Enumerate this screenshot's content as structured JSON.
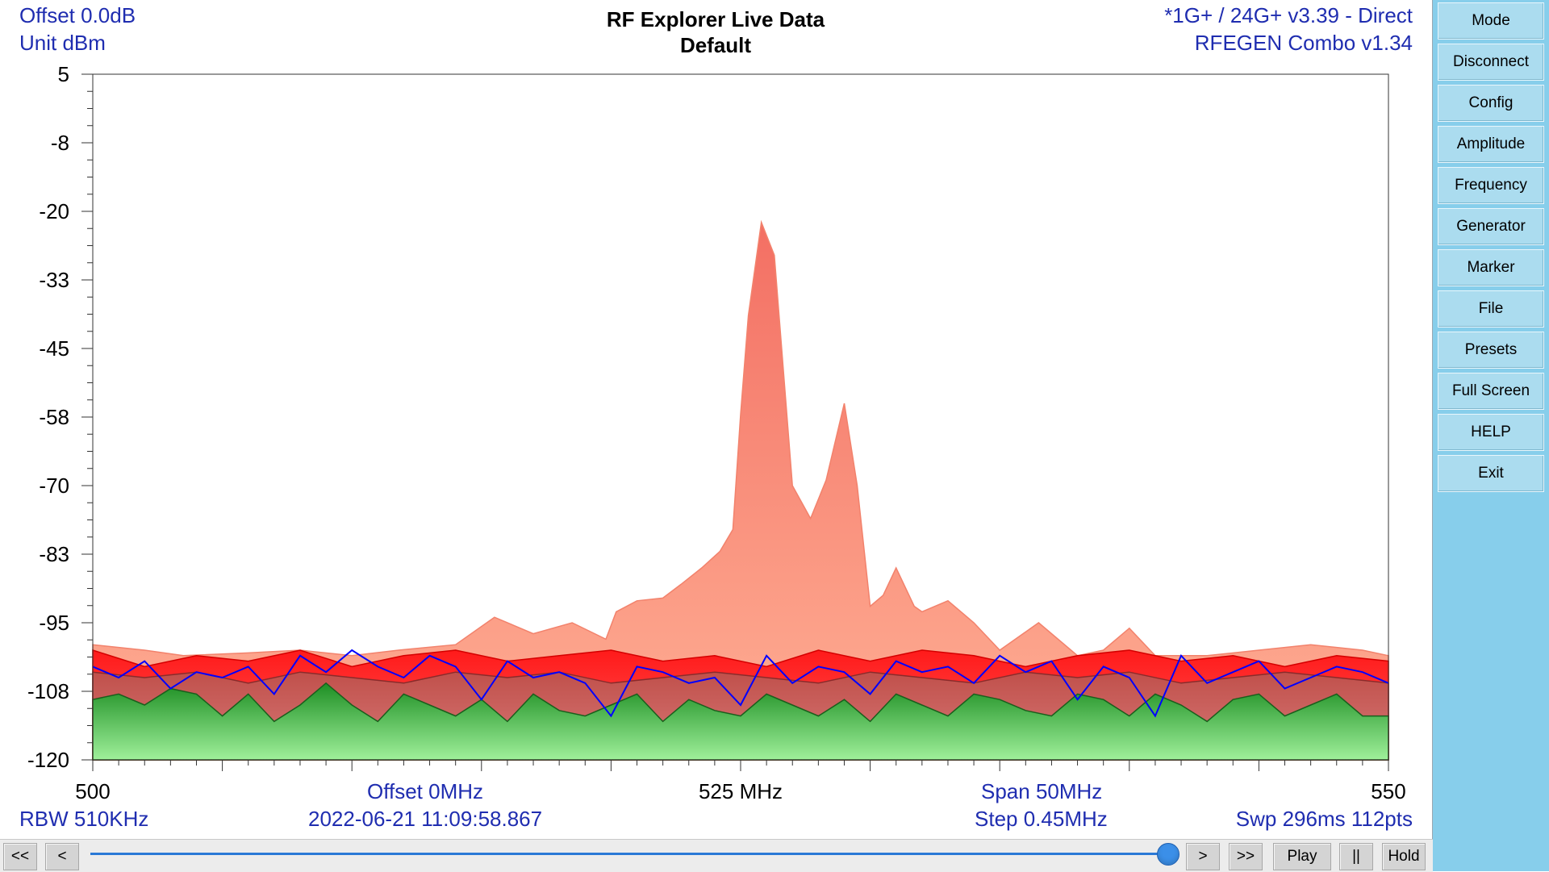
{
  "header": {
    "offset_db": "Offset 0.0dB",
    "unit": "Unit dBm",
    "title": "RF Explorer Live Data",
    "subtitle": "Default",
    "device": "*1G+ / 24G+ v3.39 - Direct",
    "generator": "RFEGEN Combo  v1.34"
  },
  "footer": {
    "rbw": "RBW 510KHz",
    "offset_mhz": "Offset 0MHz",
    "timestamp": "2022-06-21 11:09:58.867",
    "span": "Span 50MHz",
    "step": "Step 0.45MHz",
    "sweep": "Swp 296ms  112pts"
  },
  "sidebar": {
    "buttons": [
      "Mode",
      "Disconnect",
      "Config",
      "Amplitude",
      "Frequency",
      "Generator",
      "Marker",
      "File",
      "Presets",
      "Full Screen",
      "HELP",
      "Exit"
    ]
  },
  "bottombar": {
    "rewind": "<<",
    "back": "<",
    "forward": ">",
    "fast_forward": ">>",
    "play": "Play",
    "pause": "||",
    "hold": "Hold",
    "playback_position": 0.98
  },
  "colors": {
    "label_blue": "#1f2db0",
    "max_hold": "#f2826c",
    "max": "#ff2020",
    "avg": "#c85050",
    "min": "#3fb845",
    "realtime": "#0000ff",
    "sidebar_bg": "#87ceeb"
  },
  "chart_data": {
    "type": "area",
    "xlim": [
      500,
      550
    ],
    "ylim": [
      -120,
      5
    ],
    "y_ticks": [
      "5",
      "-8",
      "-20",
      "-33",
      "-45",
      "-58",
      "-70",
      "-83",
      "-95",
      "-108",
      "-120"
    ],
    "x_tick_labels": [
      "500",
      "525 MHz",
      "550"
    ],
    "series": [
      {
        "name": "max-hold",
        "x": [
          500,
          502,
          503.5,
          506,
          508,
          510,
          511.8,
          514,
          515.5,
          517,
          518.5,
          519.8,
          520.2,
          521,
          522,
          522.7,
          523.5,
          524.2,
          524.7,
          525,
          525.3,
          525.8,
          526.3,
          527,
          527.7,
          528.3,
          529,
          529.5,
          530,
          530.5,
          531,
          531.7,
          532,
          533,
          534,
          535,
          536.5,
          538,
          539,
          540,
          541,
          543,
          545,
          547,
          549,
          550
        ],
        "y": [
          -99,
          -100,
          -101,
          -100.5,
          -100,
          -101,
          -100,
          -99,
          -94,
          -97,
          -95,
          -98,
          -93,
          -91,
          -90.5,
          -88,
          -85,
          -82,
          -78,
          -57,
          -39,
          -22,
          -28,
          -70,
          -76,
          -69,
          -55,
          -70,
          -92,
          -90,
          -85,
          -92,
          -93,
          -91,
          -95,
          -100,
          -95,
          -101,
          -100,
          -96,
          -101,
          -101,
          -100,
          -99,
          -100,
          -101
        ]
      },
      {
        "name": "max",
        "x": [
          500,
          502,
          504,
          506,
          508,
          510,
          512,
          514,
          516,
          518,
          520,
          522,
          524,
          526,
          528,
          530,
          532,
          534,
          536,
          538,
          540,
          542,
          544,
          546,
          548,
          550
        ],
        "y": [
          -100,
          -103,
          -101,
          -102,
          -100,
          -103,
          -101,
          -100,
          -102,
          -101,
          -100,
          -102,
          -101,
          -103,
          -100,
          -102,
          -100,
          -101,
          -103,
          -101,
          -100,
          -102,
          -101,
          -103,
          -101,
          -102
        ]
      },
      {
        "name": "average",
        "x": [
          500,
          502,
          504,
          506,
          508,
          510,
          512,
          514,
          516,
          518,
          520,
          522,
          524,
          526,
          528,
          530,
          532,
          534,
          536,
          538,
          540,
          542,
          544,
          546,
          548,
          550
        ],
        "y": [
          -104,
          -105,
          -104,
          -106,
          -104,
          -105,
          -106,
          -104,
          -105,
          -104,
          -106,
          -105,
          -104,
          -105,
          -106,
          -104,
          -105,
          -106,
          -104,
          -105,
          -104,
          -106,
          -105,
          -104,
          -105,
          -106
        ]
      },
      {
        "name": "min",
        "x": [
          500,
          501,
          502,
          503,
          504,
          505,
          506,
          507,
          508,
          509,
          510,
          511,
          512,
          513,
          514,
          515,
          516,
          517,
          518,
          519,
          520,
          521,
          522,
          523,
          524,
          525,
          526,
          527,
          528,
          529,
          530,
          531,
          532,
          533,
          534,
          535,
          536,
          537,
          538,
          539,
          540,
          541,
          542,
          543,
          544,
          545,
          546,
          547,
          548,
          549,
          550
        ],
        "y": [
          -109,
          -108,
          -110,
          -107,
          -108,
          -112,
          -108,
          -113,
          -110,
          -106,
          -110,
          -113,
          -108,
          -110,
          -112,
          -109,
          -113,
          -108,
          -111,
          -112,
          -110,
          -108,
          -113,
          -109,
          -111,
          -112,
          -108,
          -110,
          -112,
          -109,
          -113,
          -108,
          -110,
          -112,
          -108,
          -109,
          -111,
          -112,
          -108,
          -109,
          -112,
          -108,
          -110,
          -113,
          -109,
          -108,
          -112,
          -110,
          -108,
          -112,
          -112
        ]
      },
      {
        "name": "realtime",
        "x": [
          500,
          501,
          502,
          503,
          504,
          505,
          506,
          507,
          508,
          509,
          510,
          511,
          512,
          513,
          514,
          515,
          516,
          517,
          518,
          519,
          520,
          521,
          522,
          523,
          524,
          525,
          526,
          527,
          528,
          529,
          530,
          531,
          532,
          533,
          534,
          535,
          536,
          537,
          538,
          539,
          540,
          541,
          542,
          543,
          544,
          545,
          546,
          547,
          548,
          549,
          550
        ],
        "y": [
          -103,
          -105,
          -102,
          -107,
          -104,
          -105,
          -103,
          -108,
          -101,
          -104,
          -100,
          -103,
          -105,
          -101,
          -103,
          -109,
          -102,
          -105,
          -104,
          -106,
          -112,
          -103,
          -104,
          -106,
          -105,
          -110,
          -101,
          -106,
          -103,
          -104,
          -108,
          -102,
          -104,
          -103,
          -106,
          -101,
          -104,
          -102,
          -109,
          -103,
          -105,
          -112,
          -101,
          -106,
          -104,
          -102,
          -107,
          -105,
          -103,
          -104,
          -106
        ]
      }
    ]
  }
}
